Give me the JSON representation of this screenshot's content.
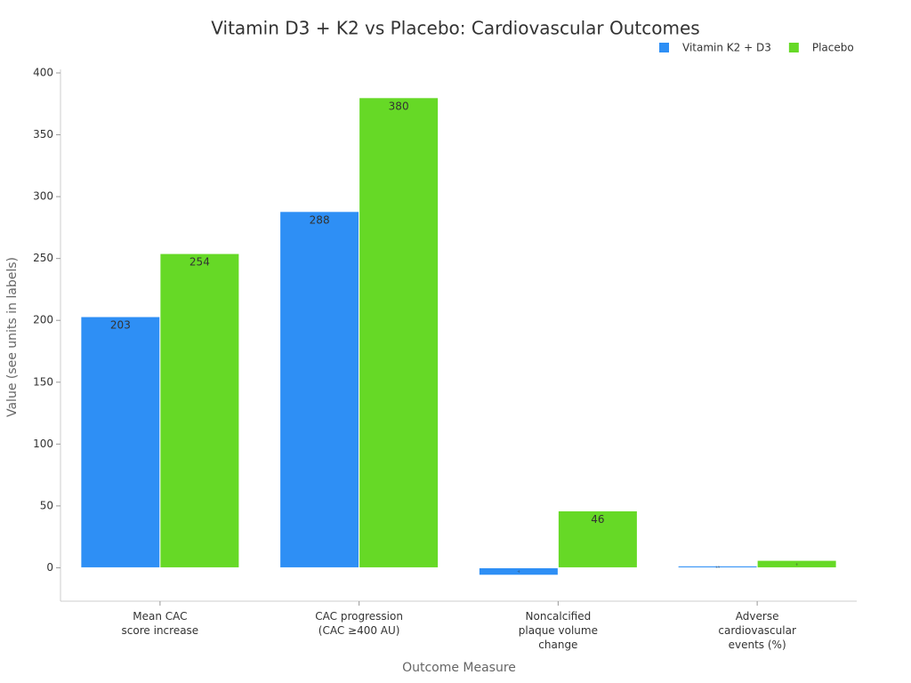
{
  "chart_data": {
    "type": "bar",
    "title": "Vitamin D3 + K2 vs Placebo: Cardiovascular Outcomes",
    "x_label": "Outcome Measure",
    "y_label": "Value (see units in labels)",
    "categories": [
      "Mean CAC\nscore increase",
      "CAC progression\n(CAC ≥400 AU)",
      "Noncalcified\nplaque volume\nchange",
      "Adverse\ncardiovascular\nevents (%)"
    ],
    "series": [
      {
        "name": "Vitamin K2 + D3",
        "color": "#2e8ff5",
        "values": [
          203,
          288,
          -6,
          1.5
        ]
      },
      {
        "name": "Placebo",
        "color": "#66d926",
        "values": [
          254,
          380,
          46,
          6
        ]
      }
    ],
    "ylim": [
      -27,
      400
    ],
    "yticks": [
      0,
      50,
      100,
      150,
      200,
      250,
      300,
      350,
      400
    ],
    "legend": "top-right"
  }
}
